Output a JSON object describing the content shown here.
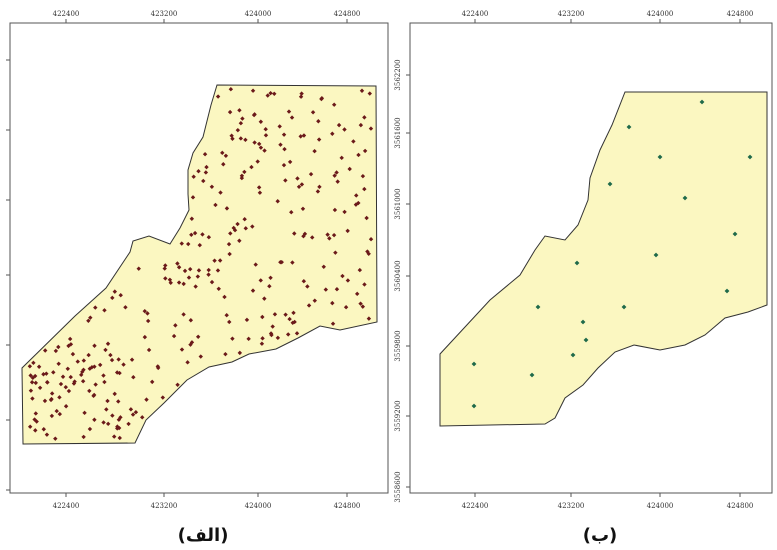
{
  "colors": {
    "region_fill": "#fbf7c1",
    "point_left": "#6b1a1a",
    "point_right": "#1f6a4a"
  },
  "panels": [
    {
      "caption": "(الف)",
      "x_ticks_top": [
        "422400",
        "423200",
        "424000",
        "424800"
      ],
      "x_ticks_bottom": [
        "422400",
        "423200",
        "424000",
        "424800"
      ]
    },
    {
      "caption": "(ب)",
      "x_ticks_top": [
        "422400",
        "423200",
        "424000",
        "424800"
      ],
      "x_ticks_bottom": [
        "422400",
        "423200",
        "424000",
        "424800"
      ],
      "y_ticks": [
        "3562200",
        "3561600",
        "3561000",
        "3560400",
        "3559800",
        "3559200",
        "3558600"
      ]
    }
  ]
}
